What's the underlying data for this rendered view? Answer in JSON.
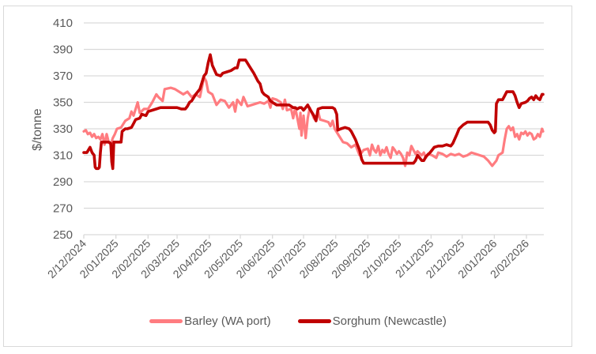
{
  "chart_data": {
    "type": "line",
    "title": "",
    "xlabel": "",
    "ylabel": "$/tonne",
    "ylim": [
      250,
      410
    ],
    "yticks": [
      250,
      270,
      290,
      310,
      330,
      350,
      370,
      390,
      410
    ],
    "xtick_labels": [
      "2/12/2024",
      "2/01/2025",
      "2/02/2025",
      "2/03/2025",
      "2/04/2025",
      "2/05/2025",
      "2/06/2025",
      "2/07/2025",
      "2/08/2025",
      "2/09/2025",
      "2/10/2025",
      "2/11/2025",
      "2/12/2025",
      "2/01/2026",
      "2/02/2026"
    ],
    "xtick_days": [
      0,
      31,
      62,
      90,
      121,
      151,
      182,
      212,
      243,
      274,
      304,
      335,
      365,
      396,
      427
    ],
    "x_unit": "days since 2/12/2024",
    "grid": {
      "horizontal": true,
      "vertical": false
    },
    "legend_position": "bottom",
    "series": [
      {
        "name": "Barley (WA port)",
        "color": "#ff7c80",
        "points": [
          [
            0,
            328
          ],
          [
            2,
            329
          ],
          [
            4,
            326
          ],
          [
            6,
            327
          ],
          [
            8,
            324
          ],
          [
            10,
            326
          ],
          [
            12,
            323
          ],
          [
            14,
            324
          ],
          [
            16,
            322
          ],
          [
            18,
            326
          ],
          [
            20,
            318
          ],
          [
            22,
            326
          ],
          [
            24,
            320
          ],
          [
            26,
            318
          ],
          [
            28,
            323
          ],
          [
            30,
            326
          ],
          [
            32,
            330
          ],
          [
            36,
            331
          ],
          [
            40,
            336
          ],
          [
            44,
            338
          ],
          [
            46,
            343
          ],
          [
            48,
            340
          ],
          [
            52,
            350
          ],
          [
            54,
            342
          ],
          [
            58,
            345
          ],
          [
            62,
            345
          ],
          [
            66,
            350
          ],
          [
            70,
            356
          ],
          [
            72,
            354
          ],
          [
            76,
            351
          ],
          [
            78,
            360
          ],
          [
            84,
            361
          ],
          [
            88,
            360
          ],
          [
            92,
            358
          ],
          [
            96,
            356
          ],
          [
            100,
            358
          ],
          [
            104,
            354
          ],
          [
            108,
            356
          ],
          [
            112,
            354
          ],
          [
            116,
            369
          ],
          [
            118,
            366
          ],
          [
            120,
            358
          ],
          [
            124,
            356
          ],
          [
            128,
            348
          ],
          [
            132,
            352
          ],
          [
            136,
            351
          ],
          [
            140,
            346
          ],
          [
            144,
            350
          ],
          [
            146,
            343
          ],
          [
            148,
            352
          ],
          [
            152,
            348
          ],
          [
            154,
            354
          ],
          [
            158,
            347
          ],
          [
            162,
            348
          ],
          [
            166,
            349
          ],
          [
            170,
            350
          ],
          [
            174,
            349
          ],
          [
            178,
            351
          ],
          [
            180,
            346
          ],
          [
            182,
            353
          ],
          [
            186,
            352
          ],
          [
            190,
            350
          ],
          [
            192,
            345
          ],
          [
            194,
            352
          ],
          [
            196,
            344
          ],
          [
            200,
            345
          ],
          [
            202,
            338
          ],
          [
            204,
            346
          ],
          [
            206,
            338
          ],
          [
            208,
            330
          ],
          [
            209,
            342
          ],
          [
            210,
            325
          ],
          [
            212,
            340
          ],
          [
            214,
            323
          ],
          [
            216,
            338
          ],
          [
            218,
            346
          ],
          [
            222,
            338
          ],
          [
            224,
            336
          ],
          [
            226,
            343
          ],
          [
            228,
            337
          ],
          [
            232,
            336
          ],
          [
            236,
            335
          ],
          [
            238,
            332
          ],
          [
            240,
            336
          ],
          [
            242,
            330
          ],
          [
            246,
            325
          ],
          [
            250,
            320
          ],
          [
            254,
            319
          ],
          [
            258,
            316
          ],
          [
            262,
            318
          ],
          [
            266,
            310
          ],
          [
            268,
            312
          ],
          [
            270,
            314
          ],
          [
            274,
            315
          ],
          [
            276,
            310
          ],
          [
            278,
            318
          ],
          [
            280,
            314
          ],
          [
            282,
            312
          ],
          [
            284,
            317
          ],
          [
            286,
            310
          ],
          [
            288,
            314
          ],
          [
            290,
            312
          ],
          [
            292,
            316
          ],
          [
            294,
            311
          ],
          [
            296,
            308
          ],
          [
            298,
            316
          ],
          [
            300,
            314
          ],
          [
            302,
            311
          ],
          [
            304,
            313
          ],
          [
            306,
            311
          ],
          [
            308,
            308
          ],
          [
            310,
            302
          ],
          [
            312,
            312
          ],
          [
            314,
            310
          ],
          [
            316,
            317
          ],
          [
            318,
            314
          ],
          [
            320,
            311
          ],
          [
            322,
            313
          ],
          [
            326,
            310
          ],
          [
            328,
            312
          ],
          [
            330,
            308
          ],
          [
            332,
            311
          ],
          [
            336,
            310
          ],
          [
            340,
            308
          ],
          [
            342,
            312
          ],
          [
            346,
            311
          ],
          [
            350,
            309
          ],
          [
            354,
            311
          ],
          [
            358,
            310
          ],
          [
            362,
            311
          ],
          [
            366,
            309
          ],
          [
            370,
            310
          ],
          [
            374,
            312
          ],
          [
            378,
            311
          ],
          [
            382,
            310
          ],
          [
            386,
            309
          ],
          [
            390,
            306
          ],
          [
            394,
            302
          ],
          [
            398,
            306
          ],
          [
            400,
            310
          ],
          [
            404,
            312
          ],
          [
            406,
            322
          ],
          [
            408,
            330
          ],
          [
            410,
            332
          ],
          [
            412,
            329
          ],
          [
            414,
            331
          ],
          [
            416,
            324
          ],
          [
            418,
            326
          ],
          [
            420,
            322
          ],
          [
            422,
            327
          ],
          [
            424,
            326
          ],
          [
            426,
            328
          ],
          [
            428,
            325
          ],
          [
            430,
            327
          ],
          [
            432,
            326
          ],
          [
            434,
            322
          ],
          [
            436,
            323
          ],
          [
            438,
            326
          ],
          [
            440,
            324
          ],
          [
            442,
            330
          ],
          [
            443,
            328
          ]
        ]
      },
      {
        "name": "Sorghum (Newcastle)",
        "color": "#c00000",
        "points": [
          [
            0,
            312
          ],
          [
            3,
            312
          ],
          [
            6,
            316
          ],
          [
            8,
            312
          ],
          [
            10,
            310
          ],
          [
            11,
            301
          ],
          [
            12,
            300
          ],
          [
            14,
            300
          ],
          [
            15,
            301
          ],
          [
            16,
            312
          ],
          [
            17,
            320
          ],
          [
            20,
            320
          ],
          [
            24,
            320
          ],
          [
            26,
            319
          ],
          [
            27,
            305
          ],
          [
            28,
            300
          ],
          [
            29,
            320
          ],
          [
            32,
            320
          ],
          [
            34,
            320
          ],
          [
            36,
            320
          ],
          [
            37,
            328
          ],
          [
            40,
            330
          ],
          [
            42,
            330
          ],
          [
            46,
            331
          ],
          [
            48,
            334
          ],
          [
            50,
            337
          ],
          [
            54,
            338
          ],
          [
            56,
            341
          ],
          [
            60,
            340
          ],
          [
            62,
            343
          ],
          [
            66,
            344
          ],
          [
            70,
            345
          ],
          [
            74,
            346
          ],
          [
            78,
            346
          ],
          [
            82,
            346
          ],
          [
            86,
            346
          ],
          [
            90,
            346
          ],
          [
            94,
            345
          ],
          [
            98,
            345
          ],
          [
            100,
            347
          ],
          [
            102,
            350
          ],
          [
            104,
            351
          ],
          [
            108,
            356
          ],
          [
            112,
            360
          ],
          [
            114,
            365
          ],
          [
            116,
            370
          ],
          [
            118,
            372
          ],
          [
            120,
            380
          ],
          [
            122,
            386
          ],
          [
            124,
            378
          ],
          [
            128,
            371
          ],
          [
            132,
            370
          ],
          [
            134,
            372
          ],
          [
            138,
            373
          ],
          [
            142,
            374
          ],
          [
            146,
            376
          ],
          [
            148,
            376
          ],
          [
            150,
            382
          ],
          [
            156,
            382
          ],
          [
            160,
            377
          ],
          [
            164,
            372
          ],
          [
            168,
            366
          ],
          [
            170,
            364
          ],
          [
            172,
            358
          ],
          [
            174,
            356
          ],
          [
            178,
            354
          ],
          [
            180,
            351
          ],
          [
            184,
            349
          ],
          [
            186,
            348
          ],
          [
            190,
            348
          ],
          [
            194,
            348
          ],
          [
            198,
            348
          ],
          [
            200,
            347
          ],
          [
            202,
            346
          ],
          [
            204,
            346
          ],
          [
            206,
            345
          ],
          [
            208,
            346
          ],
          [
            210,
            346
          ],
          [
            212,
            344
          ],
          [
            214,
            346
          ],
          [
            216,
            348
          ],
          [
            218,
            345
          ],
          [
            222,
            340
          ],
          [
            224,
            336
          ],
          [
            226,
            345
          ],
          [
            230,
            346
          ],
          [
            236,
            346
          ],
          [
            240,
            346
          ],
          [
            242,
            345
          ],
          [
            244,
            341
          ],
          [
            245,
            329
          ],
          [
            248,
            330
          ],
          [
            252,
            331
          ],
          [
            256,
            330
          ],
          [
            258,
            328
          ],
          [
            262,
            322
          ],
          [
            264,
            318
          ],
          [
            266,
            314
          ],
          [
            268,
            307
          ],
          [
            270,
            304
          ],
          [
            276,
            304
          ],
          [
            284,
            304
          ],
          [
            290,
            304
          ],
          [
            296,
            304
          ],
          [
            302,
            304
          ],
          [
            308,
            304
          ],
          [
            314,
            304
          ],
          [
            318,
            304
          ],
          [
            320,
            306
          ],
          [
            322,
            310
          ],
          [
            324,
            308
          ],
          [
            326,
            306
          ],
          [
            328,
            306
          ],
          [
            330,
            309
          ],
          [
            334,
            312
          ],
          [
            336,
            314
          ],
          [
            338,
            316
          ],
          [
            342,
            317
          ],
          [
            346,
            317
          ],
          [
            350,
            318
          ],
          [
            354,
            317
          ],
          [
            356,
            319
          ],
          [
            360,
            326
          ],
          [
            362,
            330
          ],
          [
            366,
            333
          ],
          [
            370,
            335
          ],
          [
            374,
            335
          ],
          [
            380,
            335
          ],
          [
            386,
            335
          ],
          [
            390,
            335
          ],
          [
            392,
            333
          ],
          [
            394,
            329
          ],
          [
            396,
            327
          ],
          [
            397,
            328
          ],
          [
            398,
            349
          ],
          [
            400,
            352
          ],
          [
            404,
            352
          ],
          [
            406,
            355
          ],
          [
            408,
            358
          ],
          [
            414,
            358
          ],
          [
            416,
            355
          ],
          [
            418,
            350
          ],
          [
            420,
            346
          ],
          [
            422,
            349
          ],
          [
            426,
            350
          ],
          [
            428,
            351
          ],
          [
            430,
            353
          ],
          [
            432,
            354
          ],
          [
            434,
            352
          ],
          [
            436,
            355
          ],
          [
            438,
            353
          ],
          [
            440,
            352
          ],
          [
            442,
            356
          ],
          [
            443,
            356
          ]
        ]
      }
    ]
  },
  "legend": {
    "items": [
      {
        "label": "Barley (WA port)",
        "color": "#ff7c80"
      },
      {
        "label": "Sorghum (Newcastle)",
        "color": "#c00000"
      }
    ]
  },
  "axis": {
    "ylabel": "$/tonne"
  }
}
